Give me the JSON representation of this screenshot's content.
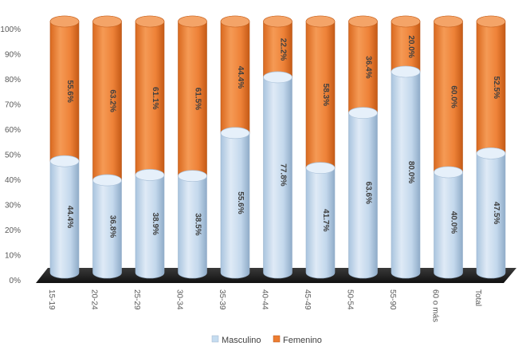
{
  "chart_data": {
    "type": "bar",
    "stacked": true,
    "percent_stacked": true,
    "style": "3d-cylinder",
    "categories": [
      "15-19",
      "20-24",
      "25-29",
      "30-34",
      "35-39",
      "40-44",
      "45-49",
      "50-54",
      "55-90",
      "60 o más",
      "Total"
    ],
    "series": [
      {
        "name": "Masculino",
        "color": "#c5dcf0",
        "values": [
          44.4,
          36.8,
          38.9,
          38.5,
          55.6,
          77.8,
          41.7,
          63.6,
          80.0,
          40.0,
          47.5
        ]
      },
      {
        "name": "Femenino",
        "color": "#ed7d31",
        "values": [
          55.6,
          63.2,
          61.1,
          61.5,
          44.4,
          22.2,
          58.3,
          36.4,
          20.0,
          60.0,
          52.5
        ]
      }
    ],
    "data_labels": [
      [
        "44.4%",
        "36.8%",
        "38.9%",
        "38.5%",
        "55.6%",
        "77.8%",
        "41.7%",
        "63.6%",
        "80.0%",
        "40.0%",
        "47.5%"
      ],
      [
        "55.6%",
        "63.2%",
        "61.1%",
        "61.5%",
        "44.4%",
        "22.2%",
        "58.3%",
        "36.4%",
        "20.0%",
        "60.0%",
        "52.5%"
      ]
    ],
    "y_ticks": [
      "0%",
      "10%",
      "20%",
      "30%",
      "40%",
      "50%",
      "60%",
      "70%",
      "80%",
      "90%",
      "100%"
    ],
    "ylim": [
      0,
      100
    ],
    "grid": false,
    "legend_position": "bottom"
  }
}
